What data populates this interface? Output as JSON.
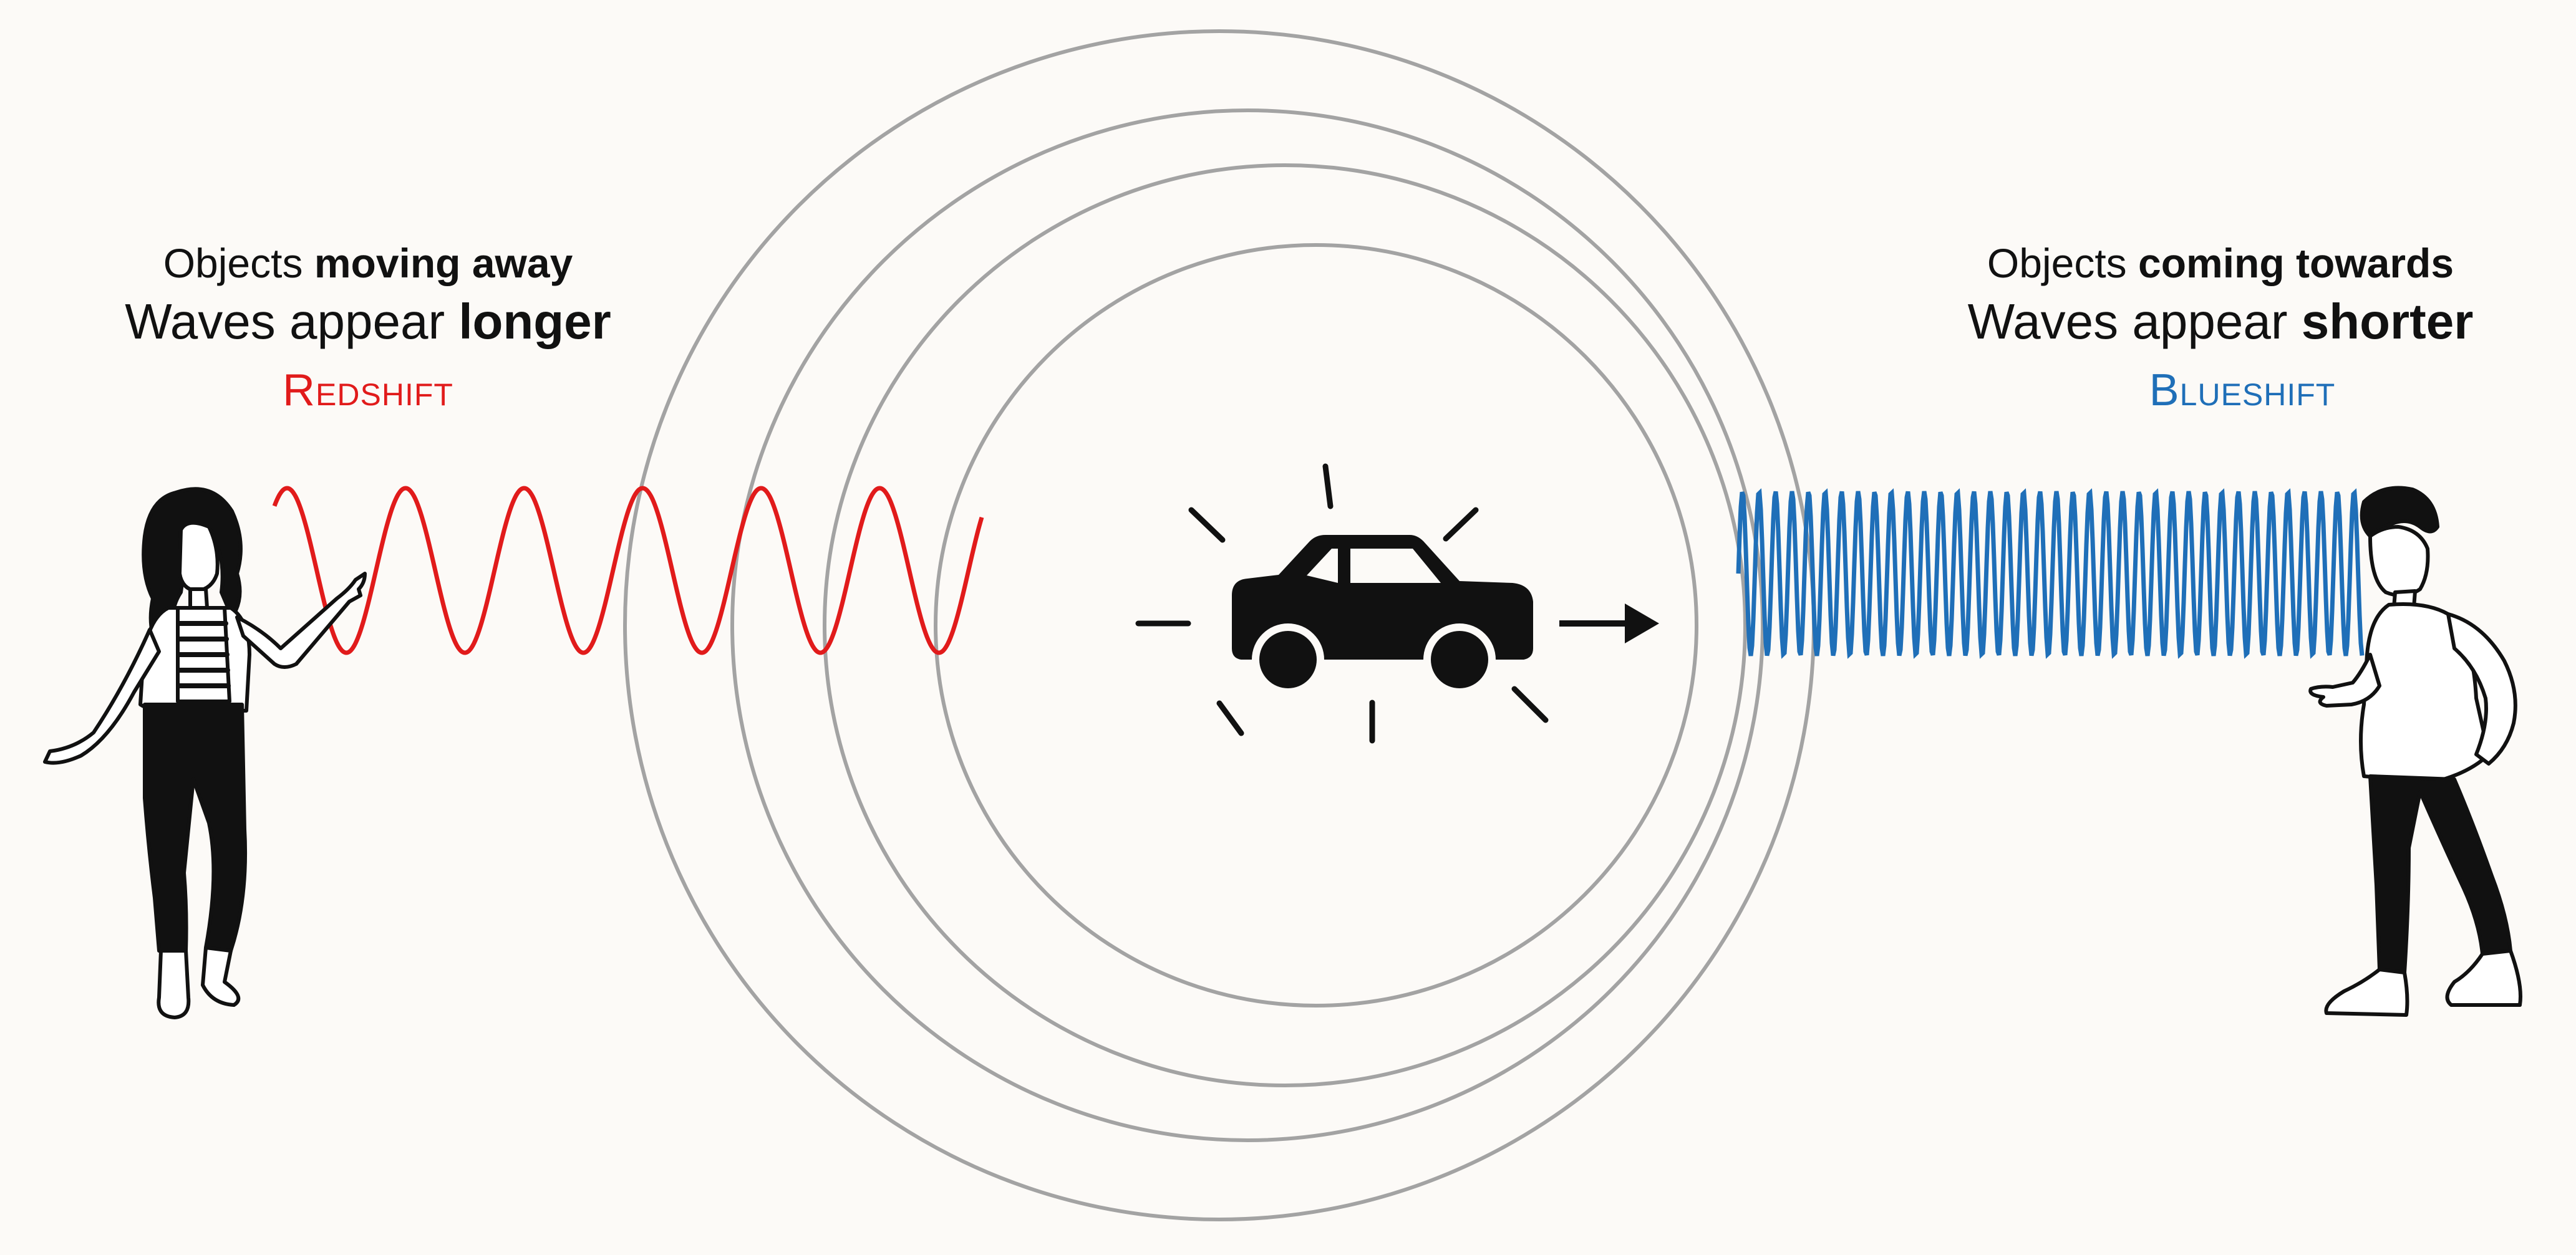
{
  "left_caption": {
    "line1_prefix": "Objects ",
    "line1_bold": "moving away",
    "line2_prefix": "Waves appear ",
    "line2_bold": "longer",
    "shift_label": "Redshift"
  },
  "right_caption": {
    "line1_prefix": "Objects ",
    "line1_bold": "coming towards",
    "line2_prefix": "Waves appear ",
    "line2_bold": "shorter",
    "shift_label": "Blueshift"
  },
  "colors": {
    "background": "#fcfaf7",
    "redshift": "#e11b1b",
    "blueshift": "#1f6fb8",
    "wavefront": "#a3a3a3",
    "ink": "#111111"
  },
  "icons": {
    "source": "car-icon",
    "direction": "arrow-right-icon",
    "left_observer": "woman-pointing-figure",
    "right_observer": "man-standing-figure"
  }
}
